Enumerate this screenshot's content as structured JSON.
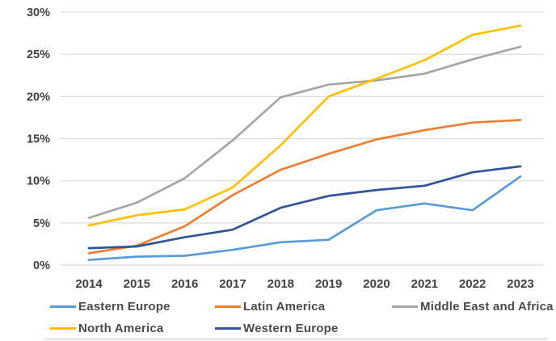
{
  "chart_data": {
    "type": "line",
    "x": [
      "2014",
      "2015",
      "2016",
      "2017",
      "2018",
      "2019",
      "2020",
      "2021",
      "2022",
      "2023"
    ],
    "series": [
      {
        "name": "Eastern Europe",
        "color": "#5B9BD5",
        "values": [
          0.6,
          1.0,
          1.1,
          1.8,
          2.7,
          3.0,
          6.5,
          7.3,
          6.5,
          10.5
        ]
      },
      {
        "name": "Latin America",
        "color": "#ED7D31",
        "values": [
          1.4,
          2.3,
          4.6,
          8.3,
          11.3,
          13.2,
          14.9,
          16.0,
          16.9,
          17.2
        ]
      },
      {
        "name": "Middle East and Africa",
        "color": "#A5A5A5",
        "values": [
          5.6,
          7.4,
          10.3,
          14.8,
          19.9,
          21.4,
          21.9,
          22.7,
          24.4,
          25.9
        ]
      },
      {
        "name": "North America",
        "color": "#FFC000",
        "values": [
          4.7,
          5.9,
          6.6,
          9.2,
          14.2,
          20.0,
          22.1,
          24.3,
          27.3,
          28.4
        ]
      },
      {
        "name": "Western Europe",
        "color": "#2F5597",
        "values": [
          2.0,
          2.2,
          3.3,
          4.2,
          6.8,
          8.2,
          8.9,
          9.4,
          11.0,
          11.7
        ]
      }
    ],
    "title": "",
    "xlabel": "",
    "ylabel": "",
    "ylim": [
      0,
      30
    ],
    "y_ticks": [
      "0%",
      "5%",
      "10%",
      "15%",
      "20%",
      "25%",
      "30%"
    ],
    "grid": true,
    "gridline_color": "#D9D9D9",
    "legend_position": "bottom",
    "legend_columns": 3,
    "tick_label_color": "#3f3f3f",
    "legend_label_color": "#4a4a4a"
  }
}
